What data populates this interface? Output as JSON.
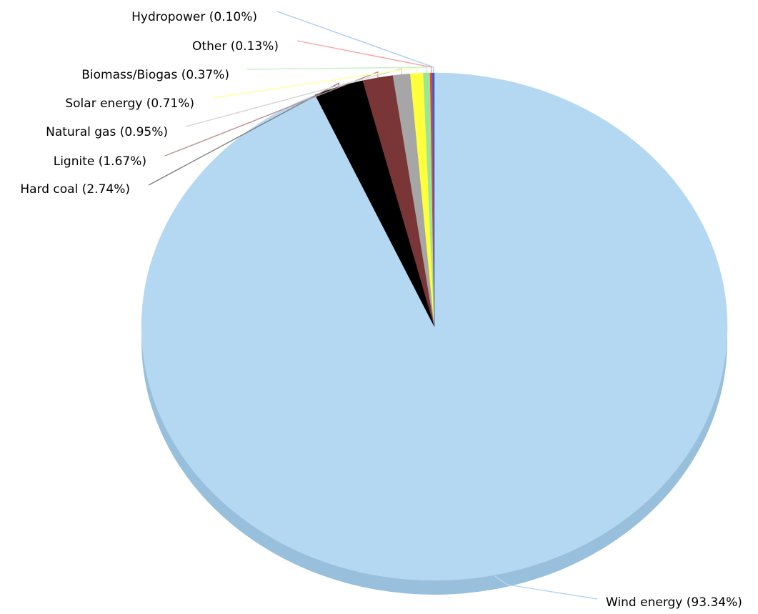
{
  "chart_data": {
    "type": "pie",
    "style": "3d",
    "start": "top, clockwise",
    "slices": [
      {
        "label": "Wind energy",
        "value": 93.34,
        "display": "Wind energy (93.34%)",
        "color": "#b4d8f2",
        "leader_color": "#b4d8f2"
      },
      {
        "label": "Hard coal",
        "value": 2.74,
        "display": "Hard coal (2.74%)",
        "color": "#000000",
        "leader_color": "#7f7f7f"
      },
      {
        "label": "Lignite",
        "value": 1.67,
        "display": "Lignite (1.67%)",
        "color": "#7a3636",
        "leader_color": "#b88f8f"
      },
      {
        "label": "Natural gas",
        "value": 0.95,
        "display": "Natural gas (0.95%)",
        "color": "#a6a6a6",
        "leader_color": "#d4d4d4"
      },
      {
        "label": "Solar energy",
        "value": 0.71,
        "display": "Solar energy (0.71%)",
        "color": "#ffff3c",
        "leader_color": "#ffff9c"
      },
      {
        "label": "Biomass/Biogas",
        "value": 0.37,
        "display": "Biomass/Biogas (0.37%)",
        "color": "#99e699",
        "leader_color": "#c8efc8"
      },
      {
        "label": "Other",
        "value": 0.13,
        "display": "Other (0.13%)",
        "color": "#f03c3c",
        "leader_color": "#f5a3a3"
      },
      {
        "label": "Hydropower",
        "value": 0.1,
        "display": "Hydropower (0.10%)",
        "color": "#2266d6",
        "leader_color": "#a9cdf0"
      }
    ],
    "depth_color": "#98bfdc"
  }
}
